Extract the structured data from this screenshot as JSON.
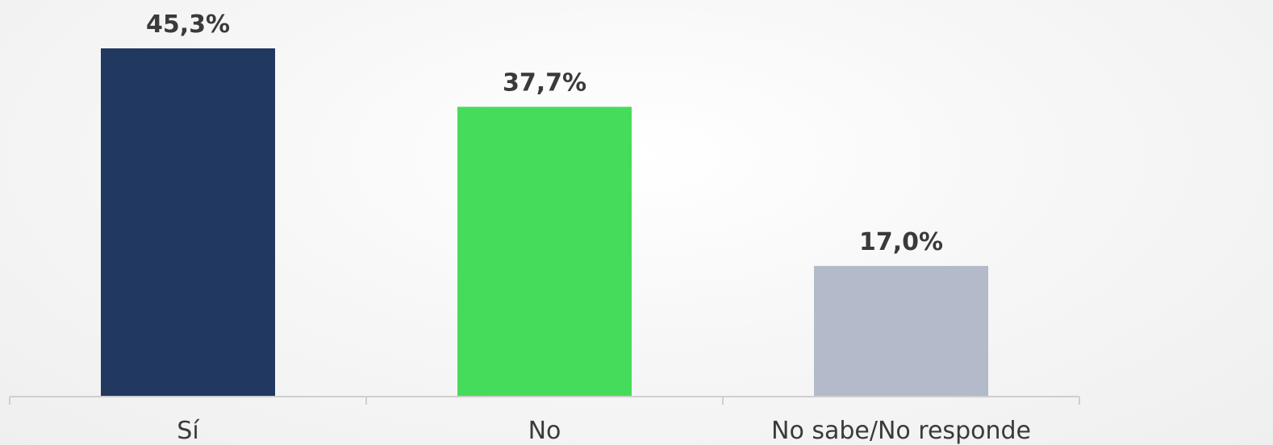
{
  "chart_data": {
    "type": "bar",
    "categories": [
      "Sí",
      "No",
      "No sabe/No responde"
    ],
    "values": [
      45.3,
      37.7,
      17.0
    ],
    "value_labels": [
      "45,3%",
      "37,7%",
      "17,0%"
    ],
    "colors": [
      "#213861",
      "#46dc5b",
      "#b3bac9"
    ],
    "title": "",
    "xlabel": "",
    "ylabel": "",
    "ylim": [
      0,
      45.3
    ],
    "grid": false,
    "legend": "none"
  }
}
